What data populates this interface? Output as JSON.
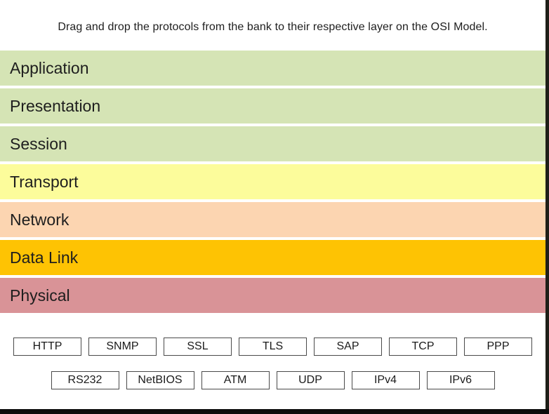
{
  "instruction": "Drag and drop the protocols from the bank to their respective layer on the OSI Model.",
  "osi_layers": [
    {
      "label": "Application",
      "color": "#d5e4b5"
    },
    {
      "label": "Presentation",
      "color": "#d5e4b5"
    },
    {
      "label": "Session",
      "color": "#d5e4b5"
    },
    {
      "label": "Transport",
      "color": "#fcfc9b"
    },
    {
      "label": "Network",
      "color": "#fcd5b1"
    },
    {
      "label": "Data Link",
      "color": "#fec303"
    },
    {
      "label": "Physical",
      "color": "#d99397"
    }
  ],
  "protocol_bank": {
    "row1": [
      "HTTP",
      "SNMP",
      "SSL",
      "TLS",
      "SAP",
      "TCP",
      "PPP"
    ],
    "row2": [
      "RS232",
      "NetBIOS",
      "ATM",
      "UDP",
      "IPv4",
      "IPv6"
    ]
  },
  "chip_style": {
    "border_color": "#4a4a4a",
    "background": "#ffffff",
    "text_color": "#1b1b1b"
  },
  "window": {
    "background": "#ffffff",
    "right_edge_color": "#1f1f18",
    "bottom_edge_color": "#0b0b0b"
  }
}
